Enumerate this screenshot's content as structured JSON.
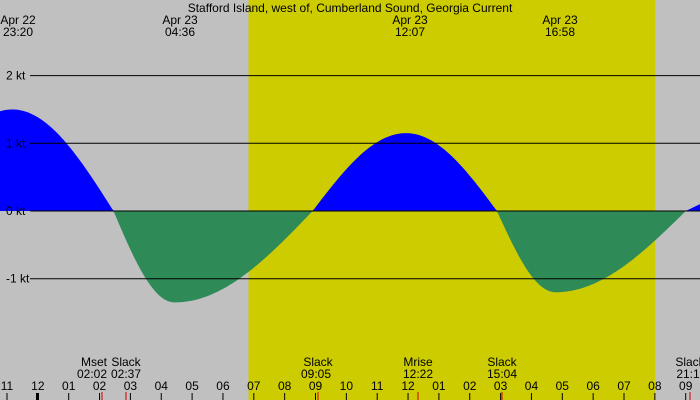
{
  "colors": {
    "night": "#c0c0c0",
    "day": "#cccc00",
    "flood": "#0000ff",
    "ebb": "#2e8b57",
    "gridline": "#000000",
    "tide_event_marker": "#cc0000"
  },
  "chart_data": {
    "type": "area",
    "title": "Stafford Island, west of, Cumberland Sound, Georgia Current",
    "unit": "kt",
    "y_ticks": [
      {
        "value": 2,
        "label": "2 kt"
      },
      {
        "value": 1,
        "label": "1 kt"
      },
      {
        "value": 0,
        "label": "0 kt"
      },
      {
        "value": -1,
        "label": "-1 kt"
      }
    ],
    "x_hours": [
      "11",
      "12",
      "01",
      "02",
      "03",
      "04",
      "05",
      "06",
      "07",
      "08",
      "09",
      "10",
      "11",
      "12",
      "01",
      "02",
      "03",
      "04",
      "05",
      "06",
      "07",
      "08",
      "09"
    ],
    "x_range_hours": [
      10.8,
      33.6
    ],
    "y_range": [
      -2.9,
      3.0
    ],
    "day_period": {
      "start": 31.0,
      "end": 31.0,
      "note": ""
    },
    "daylight": [
      {
        "start": 30.967,
        "end": 44.2
      }
    ],
    "daylight_hours": [
      7.0,
      20.2
    ],
    "sun_labels": [
      {
        "date": "Apr 22",
        "time": "23:20",
        "hour": 23.333
      },
      {
        "date": "Apr 23",
        "time": "04:36",
        "hour": 28.6
      },
      {
        "date": "Apr 23",
        "time": "12:07",
        "hour": 36.117
      },
      {
        "date": "Apr 23",
        "time": "16:58",
        "hour": 40.967
      }
    ],
    "events": [
      {
        "label": "Mset",
        "time": "02:02",
        "hour": 26.033
      },
      {
        "label": "Slack",
        "time": "02:37",
        "hour": 26.617
      },
      {
        "label": "Slack",
        "time": "09:05",
        "hour": 33.083
      },
      {
        "label": "Mrise",
        "time": "12:22",
        "hour": 36.367
      },
      {
        "label": "Slack",
        "time": "15:04",
        "hour": 39.067
      },
      {
        "label": "Slack",
        "time": "21:1",
        "hour": 45.2
      }
    ],
    "series": [
      {
        "x": [
          23.333,
          26.617,
          28.6,
          33.083,
          36.117,
          39.067,
          40.967,
          45.2
        ],
        "y": [
          1.5,
          0,
          -1.35,
          0,
          1.15,
          0,
          -1.2,
          0
        ]
      }
    ]
  }
}
